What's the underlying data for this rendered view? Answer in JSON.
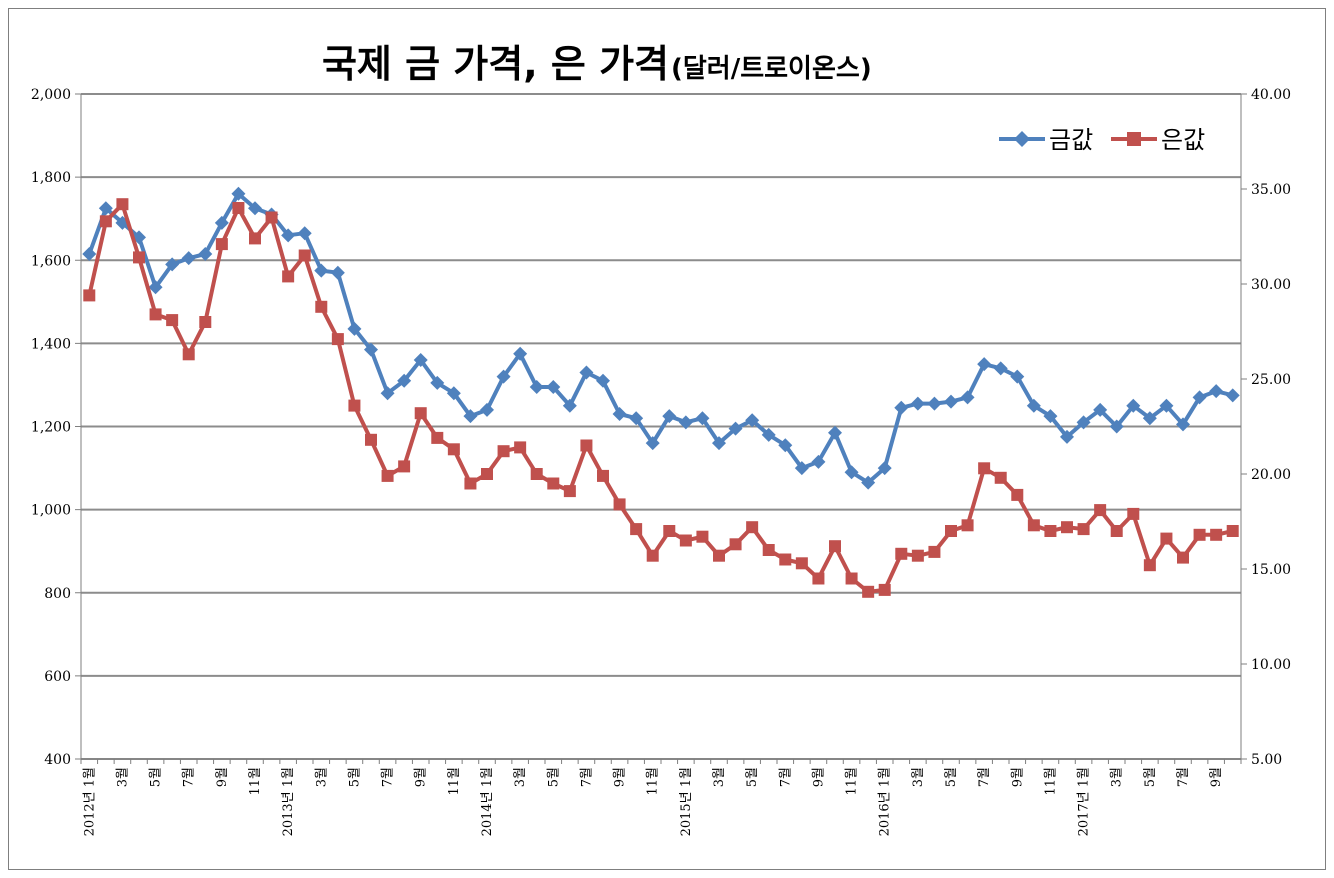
{
  "chart_data": {
    "type": "line",
    "title": "국제 금 가격, 은 가격",
    "subtitle": "(달러/트로이온스)",
    "y_left": {
      "range": [
        400,
        2000
      ],
      "ticks": [
        "400",
        "600",
        "800",
        "1,000",
        "1,200",
        "1,400",
        "1,600",
        "1,800",
        "2,000"
      ]
    },
    "y_right": {
      "range": [
        5,
        40
      ],
      "ticks": [
        "5.00",
        "10.00",
        "15.00",
        "20.00",
        "25.00",
        "30.00",
        "35.00",
        "40.00"
      ]
    },
    "grid": true,
    "legend_position": "top-right",
    "x_labels": [
      "2012년 1월",
      "",
      "3월",
      "",
      "5월",
      "",
      "7월",
      "",
      "9월",
      "",
      "11월",
      "",
      "2013년 1월",
      "",
      "3월",
      "",
      "5월",
      "",
      "7월",
      "",
      "9월",
      "",
      "11월",
      "",
      "2014년 1월",
      "",
      "3월",
      "",
      "5월",
      "",
      "7월",
      "",
      "9월",
      "",
      "11월",
      "",
      "2015년 1월",
      "",
      "3월",
      "",
      "5월",
      "",
      "7월",
      "",
      "9월",
      "",
      "11월",
      "",
      "2016년 1월",
      "",
      "3월",
      "",
      "5월",
      "",
      "7월",
      "",
      "9월",
      "",
      "11월",
      "",
      "2017년 1월",
      "",
      "3월",
      "",
      "5월",
      "",
      "7월",
      "",
      "9월",
      ""
    ],
    "series": [
      {
        "name": "금값",
        "axis": "left",
        "color": "#4f81bd",
        "marker": "diamond",
        "values": [
          1615,
          1725,
          1690,
          1655,
          1535,
          1590,
          1605,
          1615,
          1690,
          1760,
          1725,
          1710,
          1660,
          1665,
          1575,
          1570,
          1435,
          1385,
          1280,
          1310,
          1360,
          1305,
          1280,
          1225,
          1240,
          1320,
          1375,
          1295,
          1295,
          1250,
          1330,
          1310,
          1230,
          1220,
          1160,
          1225,
          1210,
          1220,
          1160,
          1195,
          1215,
          1180,
          1155,
          1100,
          1115,
          1185,
          1090,
          1065,
          1100,
          1245,
          1255,
          1255,
          1260,
          1270,
          1350,
          1340,
          1320,
          1250,
          1225,
          1175,
          1210,
          1240,
          1200,
          1250,
          1220,
          1250,
          1205,
          1270,
          1285,
          1275
        ]
      },
      {
        "name": "은값",
        "axis": "right",
        "color": "#c0504d",
        "marker": "square",
        "values": [
          29.4,
          33.3,
          34.2,
          31.4,
          28.4,
          28.1,
          26.3,
          28.0,
          32.1,
          34.0,
          32.4,
          33.5,
          30.4,
          31.5,
          28.8,
          27.1,
          23.6,
          21.8,
          19.9,
          20.4,
          23.2,
          21.9,
          21.3,
          19.5,
          20.0,
          21.2,
          21.4,
          20.0,
          19.5,
          19.1,
          21.5,
          19.9,
          18.4,
          17.1,
          15.7,
          17.0,
          16.5,
          16.7,
          15.7,
          16.3,
          17.2,
          16.0,
          15.5,
          15.3,
          14.5,
          16.2,
          14.5,
          13.8,
          13.9,
          15.8,
          15.7,
          15.9,
          17.0,
          17.3,
          20.3,
          19.8,
          18.9,
          17.3,
          17.0,
          17.2,
          17.1,
          18.1,
          17.0,
          17.9,
          15.2,
          16.6,
          15.6,
          16.8,
          16.8,
          17.0
        ]
      }
    ]
  }
}
